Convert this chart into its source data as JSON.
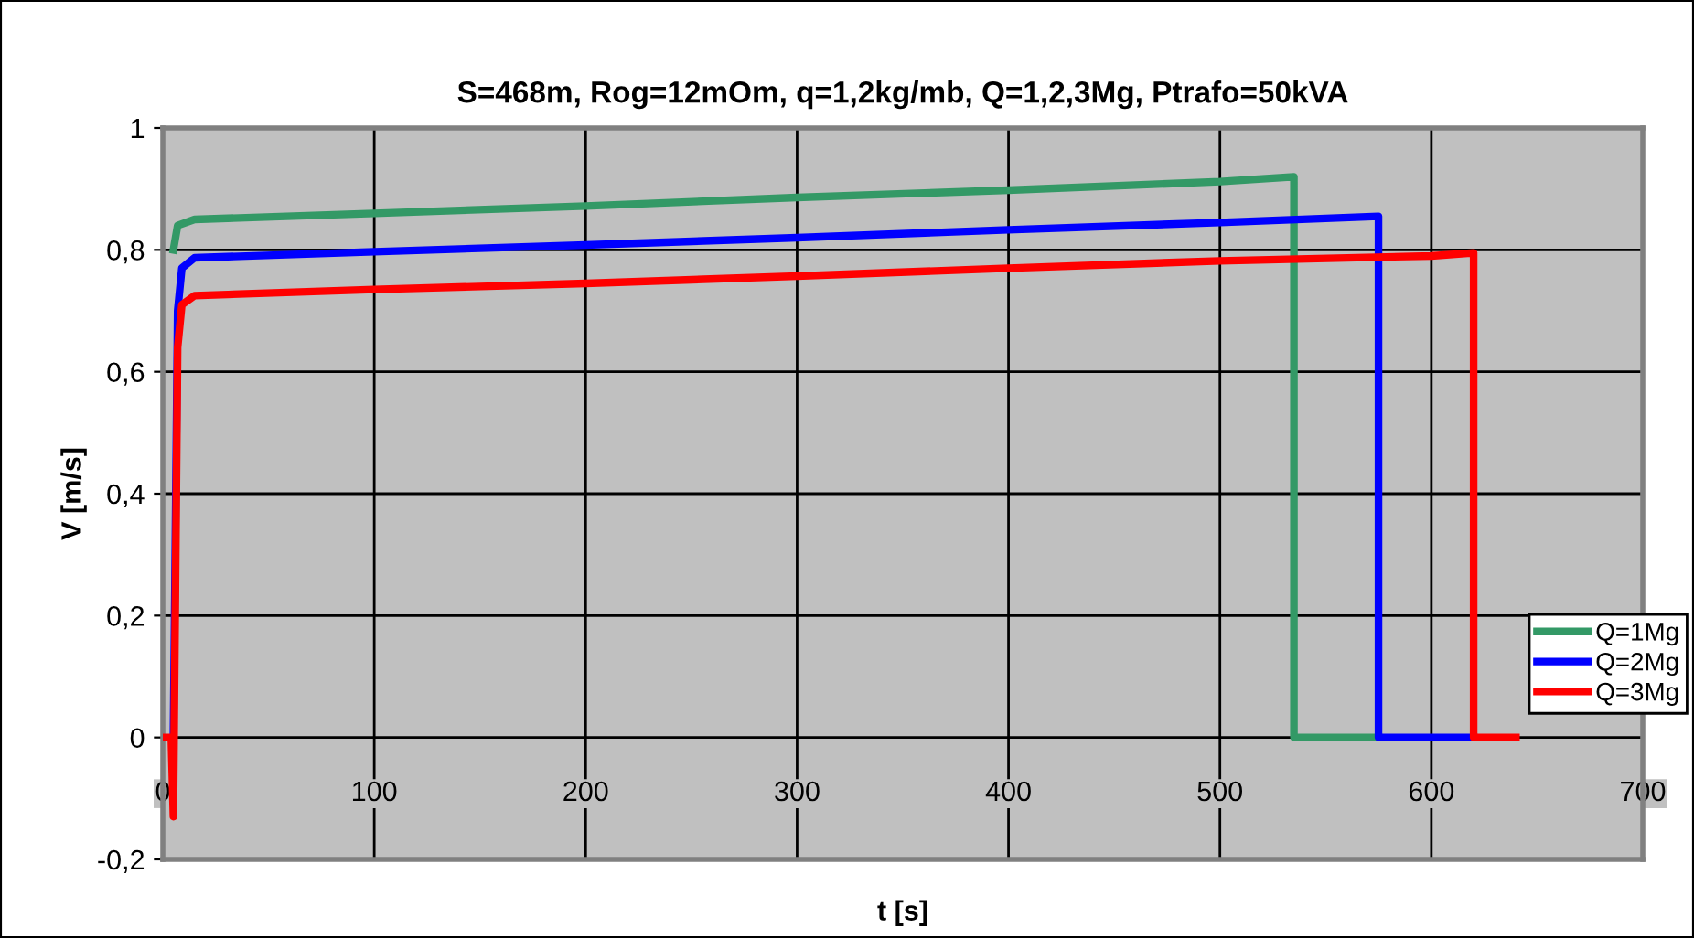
{
  "chart_data": {
    "type": "line",
    "title": "S=468m, Rog=12mOm, q=1,2kg/mb, Q=1,2,3Mg, Ptrafo=50kVA",
    "xlabel": "t [s]",
    "ylabel": "V [m/s]",
    "xlim": [
      0,
      700
    ],
    "xticks": [
      0,
      100,
      200,
      300,
      400,
      500,
      600,
      700
    ],
    "ylim": [
      -0.2,
      1
    ],
    "yticks": [
      {
        "value": -0.2,
        "label": "-0,2"
      },
      0,
      {
        "value": 0.2,
        "label": "0,2"
      },
      {
        "value": 0.4,
        "label": "0,4"
      },
      {
        "value": 0.6,
        "label": "0,6"
      },
      {
        "value": 0.8,
        "label": "0,8"
      },
      1
    ],
    "grid": true,
    "legend": "bottom right",
    "marker": "none",
    "line_style": "solid",
    "series": [
      {
        "name": "Q=1Mg",
        "color": "#339966",
        "x": [
          5,
          7,
          15,
          100,
          200,
          300,
          400,
          500,
          535,
          535,
          575
        ],
        "values": [
          0.8,
          0.84,
          0.85,
          0.86,
          0.872,
          0.886,
          0.898,
          0.912,
          0.92,
          0,
          0
        ]
      },
      {
        "name": "Q=2Mg",
        "color": "#0000ff",
        "x": [
          5,
          7,
          9,
          15,
          100,
          200,
          300,
          400,
          500,
          575,
          575,
          620
        ],
        "values": [
          0,
          0.7,
          0.77,
          0.787,
          0.797,
          0.808,
          0.82,
          0.833,
          0.845,
          0.855,
          0,
          0
        ]
      },
      {
        "name": "Q=3Mg",
        "color": "#ff0000",
        "x": [
          0,
          4,
          5,
          6,
          7,
          9,
          15,
          100,
          200,
          300,
          400,
          500,
          600,
          620,
          620,
          640
        ],
        "values": [
          0,
          0,
          -0.13,
          0.25,
          0.64,
          0.71,
          0.725,
          0.735,
          0.745,
          0.757,
          0.77,
          0.782,
          0.79,
          0.795,
          0,
          0
        ]
      }
    ]
  }
}
